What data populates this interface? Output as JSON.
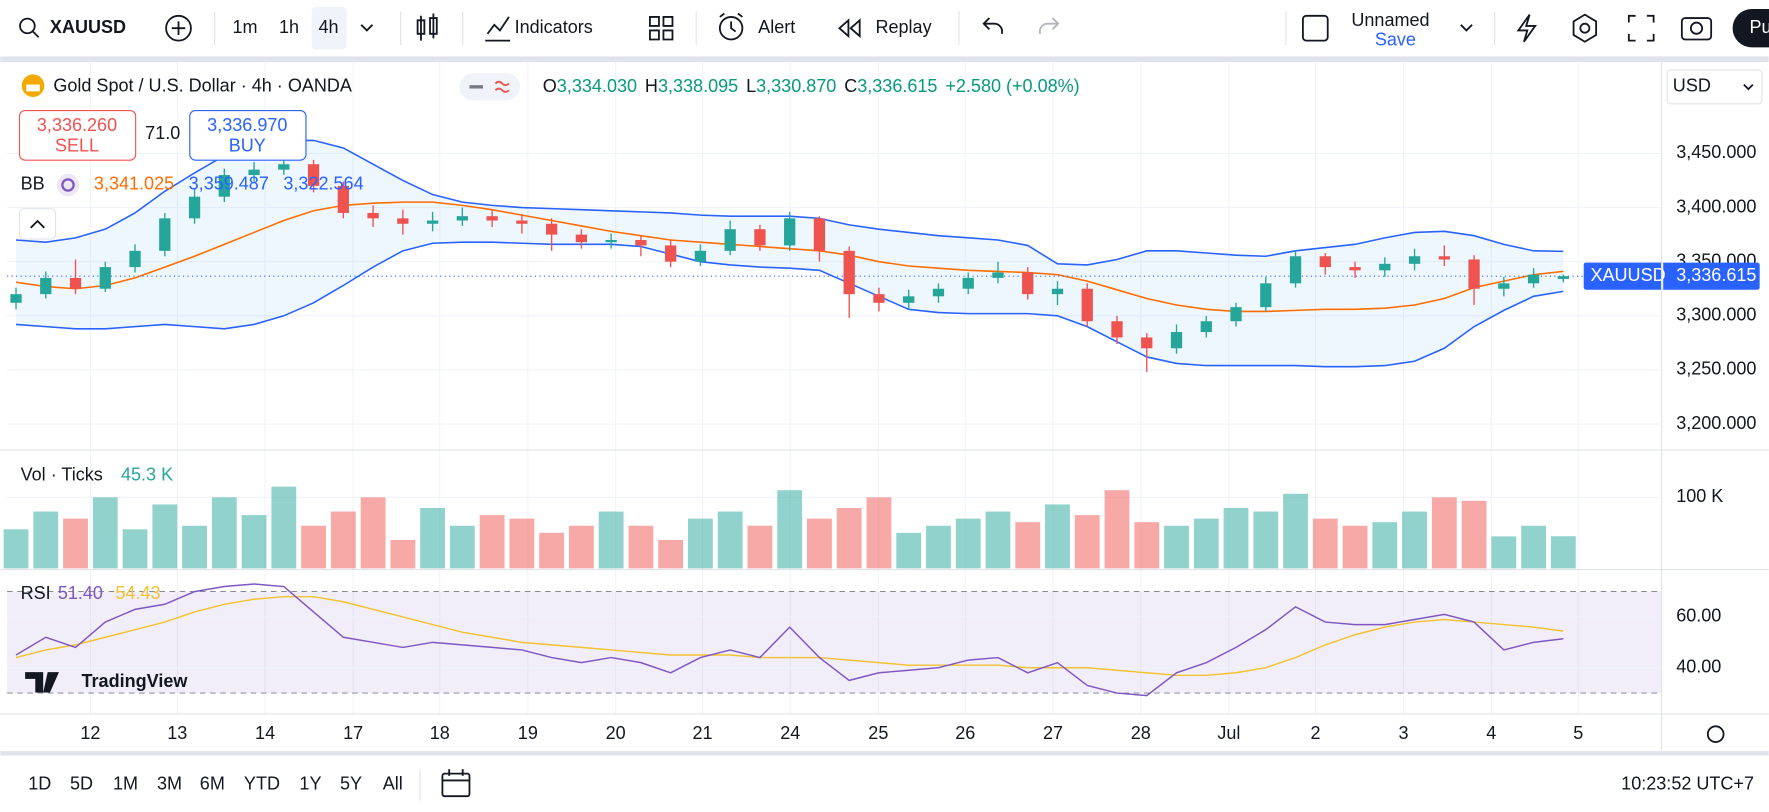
{
  "toolbar": {
    "symbol": "XAUUSD",
    "intervals": [
      "1m",
      "1h",
      "4h"
    ],
    "indicators": "Indicators",
    "alert": "Alert",
    "replay": "Replay",
    "layout": "Unnamed",
    "save": "Save",
    "publish": "Pu"
  },
  "legend": {
    "title": "Gold Spot / U.S. Dollar · 4h · OANDA",
    "ohlc": [
      {
        "key": "O",
        "value": "3,334.030"
      },
      {
        "key": "H",
        "value": "3,338.095"
      },
      {
        "key": "L",
        "value": "3,330.870"
      },
      {
        "key": "C",
        "value": "3,336.615"
      }
    ],
    "change": "+2.580 (+0.08%)"
  },
  "trade": {
    "sell_price": "3,336.260",
    "sell": "SELL",
    "spread": "71.0",
    "buy_price": "3,336.970",
    "buy": "BUY"
  },
  "bb": {
    "name": "BB",
    "values": [
      "3,341.025",
      "3,359.487",
      "3,322.564"
    ]
  },
  "vol_legend": {
    "name": "Vol · Ticks",
    "value": "45.3 K"
  },
  "rsi_legend": {
    "name": "RSI",
    "values": [
      "51.40",
      "54.43"
    ]
  },
  "watermark": "TradingView",
  "currency": "USD",
  "ranges": [
    "1D",
    "5D",
    "1M",
    "3M",
    "6M",
    "YTD",
    "1Y",
    "5Y",
    "All"
  ],
  "clock": "10:23:52 UTC+7",
  "chart_data": {
    "type": "candlestick",
    "xlim": [
      -0.3,
      55.3
    ],
    "xticks": [
      {
        "value": 2.5,
        "label": "12"
      },
      {
        "value": 5.42,
        "label": "13"
      },
      {
        "value": 8.37,
        "label": "14"
      },
      {
        "value": 11.33,
        "label": "17"
      },
      {
        "value": 14.24,
        "label": "18"
      },
      {
        "value": 17.2,
        "label": "19"
      },
      {
        "value": 20.15,
        "label": "20"
      },
      {
        "value": 23.07,
        "label": "21"
      },
      {
        "value": 26.02,
        "label": "24"
      },
      {
        "value": 28.98,
        "label": "25"
      },
      {
        "value": 31.9,
        "label": "26"
      },
      {
        "value": 34.85,
        "label": "27"
      },
      {
        "value": 37.8,
        "label": "28"
      },
      {
        "value": 40.76,
        "label": "Jul"
      },
      {
        "value": 43.67,
        "label": "2"
      },
      {
        "value": 46.63,
        "label": "3"
      },
      {
        "value": 49.58,
        "label": "4"
      },
      {
        "value": 52.5,
        "label": "5"
      }
    ],
    "ylim": [
      3177.1,
      3534.4
    ],
    "yticks": [
      {
        "value": 3200,
        "label": "3,200.000"
      },
      {
        "value": 3250,
        "label": "3,250.000"
      },
      {
        "value": 3300,
        "label": "3,300.000"
      },
      {
        "value": 3350,
        "label": "3,350.000"
      },
      {
        "value": 3400,
        "label": "3,400.000"
      },
      {
        "value": 3450,
        "label": "3,450.000"
      }
    ],
    "grid": true,
    "up_color": "#26a69a",
    "down_color": "#ef5350",
    "candles": {
      "open": [
        3312,
        3320,
        3335,
        3325,
        3345,
        3360,
        3390,
        3410,
        3430,
        3435,
        3440,
        3420,
        3395,
        3390,
        3385,
        3388,
        3392,
        3388,
        3385,
        3375,
        3368,
        3370,
        3365,
        3350,
        3360,
        3380,
        3365,
        3390,
        3360,
        3320,
        3312,
        3318,
        3325,
        3335,
        3340,
        3320,
        3325,
        3295,
        3280,
        3270,
        3285,
        3295,
        3308,
        3330,
        3355,
        3345,
        3342,
        3348,
        3355,
        3352,
        3325,
        3330,
        3334.03
      ],
      "high": [
        3326,
        3341,
        3352,
        3350,
        3366,
        3395,
        3418,
        3436,
        3442,
        3448,
        3444,
        3424,
        3402,
        3398,
        3396,
        3400,
        3398,
        3394,
        3390,
        3380,
        3376,
        3374,
        3370,
        3366,
        3388,
        3384,
        3396,
        3392,
        3364,
        3326,
        3324,
        3330,
        3340,
        3350,
        3345,
        3332,
        3330,
        3300,
        3284,
        3292,
        3300,
        3312,
        3336,
        3360,
        3358,
        3350,
        3354,
        3362,
        3365,
        3356,
        3336,
        3344,
        3338.095
      ],
      "low": [
        3306,
        3316,
        3320,
        3322,
        3340,
        3355,
        3385,
        3405,
        3424,
        3430,
        3414,
        3390,
        3382,
        3375,
        3378,
        3383,
        3382,
        3376,
        3360,
        3362,
        3362,
        3355,
        3345,
        3346,
        3356,
        3360,
        3360,
        3350,
        3298,
        3304,
        3306,
        3312,
        3320,
        3330,
        3315,
        3310,
        3290,
        3274,
        3248,
        3265,
        3280,
        3290,
        3304,
        3326,
        3338,
        3335,
        3336,
        3342,
        3346,
        3310,
        3318,
        3326,
        3330.87
      ],
      "close": [
        3320,
        3335,
        3325,
        3345,
        3360,
        3390,
        3410,
        3430,
        3435,
        3440,
        3420,
        3395,
        3390,
        3385,
        3388,
        3392,
        3388,
        3385,
        3375,
        3368,
        3370,
        3365,
        3350,
        3360,
        3380,
        3365,
        3390,
        3360,
        3320,
        3312,
        3318,
        3325,
        3335,
        3340,
        3320,
        3325,
        3295,
        3280,
        3270,
        3285,
        3295,
        3308,
        3330,
        3355,
        3345,
        3342,
        3348,
        3355,
        3352,
        3325,
        3330,
        3338,
        3336.615
      ]
    },
    "last_price": {
      "name": "XAUUSD",
      "value": 3336.615,
      "label": "3,336.615",
      "color": "#2962ff"
    },
    "bands": {
      "fill": "rgba(33,150,243,0.08)",
      "series": [
        {
          "color": "#ff6d00",
          "values": [
            3331,
            3327,
            3325,
            3328,
            3335,
            3345,
            3355,
            3366,
            3377,
            3388,
            3397,
            3402,
            3404,
            3405,
            3405,
            3402,
            3398,
            3393,
            3388,
            3383,
            3378,
            3374,
            3370,
            3368,
            3366,
            3364,
            3362,
            3360,
            3356,
            3350,
            3346,
            3344,
            3342,
            3341,
            3340,
            3338,
            3332,
            3324,
            3316,
            3310,
            3306,
            3304,
            3304,
            3305,
            3306,
            3306,
            3307,
            3310,
            3316,
            3326,
            3332,
            3338,
            3341.025
          ]
        },
        {
          "color": "#2962ff",
          "values": [
            3370,
            3368,
            3372,
            3380,
            3395,
            3415,
            3432,
            3448,
            3458,
            3462,
            3462,
            3455,
            3440,
            3425,
            3412,
            3405,
            3402,
            3400,
            3399,
            3398,
            3397,
            3396,
            3395,
            3393,
            3392,
            3392,
            3392,
            3390,
            3384,
            3380,
            3377,
            3374,
            3372,
            3370,
            3365,
            3348,
            3347,
            3352,
            3360,
            3360,
            3358,
            3356,
            3355,
            3360,
            3363,
            3366,
            3372,
            3377,
            3378,
            3374,
            3366,
            3360,
            3359.487
          ]
        },
        {
          "color": "#2962ff",
          "values": [
            3292,
            3290,
            3288,
            3288,
            3290,
            3292,
            3290,
            3288,
            3292,
            3300,
            3312,
            3328,
            3345,
            3360,
            3367,
            3368,
            3368,
            3367,
            3366,
            3366,
            3366,
            3364,
            3357,
            3350,
            3347,
            3345,
            3344,
            3342,
            3330,
            3318,
            3306,
            3303,
            3302,
            3302,
            3302,
            3300,
            3290,
            3276,
            3262,
            3256,
            3254,
            3254,
            3254,
            3254,
            3253,
            3253,
            3254,
            3258,
            3270,
            3290,
            3305,
            3318,
            3322.564
          ]
        }
      ]
    },
    "volume": {
      "ylim": [
        0,
        165000
      ],
      "yticks": [
        {
          "value": 100000,
          "label": "100 K"
        }
      ],
      "values": [
        55000,
        80000,
        70000,
        100000,
        55000,
        90000,
        60000,
        100000,
        75000,
        115000,
        60000,
        80000,
        100000,
        40000,
        85000,
        60000,
        75000,
        70000,
        50000,
        60000,
        80000,
        60000,
        40000,
        70000,
        80000,
        60000,
        110000,
        70000,
        85000,
        100000,
        50000,
        60000,
        70000,
        80000,
        65000,
        90000,
        75000,
        110000,
        65000,
        60000,
        70000,
        85000,
        80000,
        105000,
        70000,
        60000,
        65000,
        80000,
        100000,
        95000,
        45000,
        60000,
        45300
      ]
    },
    "rsi": {
      "ylim": [
        21.8,
        78.7
      ],
      "yticks": [
        {
          "value": 40,
          "label": "40.00"
        },
        {
          "value": 60,
          "label": "60.00"
        }
      ],
      "band": [
        30,
        70
      ],
      "color": "#7e57c2",
      "ma_color": "#f2c230",
      "values": [
        45,
        52,
        48,
        58,
        63,
        65,
        70,
        72,
        73,
        72,
        62,
        52,
        50,
        48,
        50,
        49,
        48,
        47,
        44,
        42,
        44,
        42,
        38,
        44,
        47,
        44,
        56,
        44,
        35,
        38,
        39,
        40,
        43,
        44,
        38,
        42,
        33,
        30,
        29,
        38,
        42,
        48,
        55,
        64,
        58,
        57,
        57,
        59,
        61,
        58,
        47,
        50,
        51.4
      ],
      "ma": [
        44,
        47,
        49,
        52,
        55,
        58,
        62,
        65,
        67,
        68,
        68,
        66,
        63,
        60,
        57,
        54,
        52,
        50,
        49,
        48,
        47,
        46,
        45,
        45,
        45,
        44,
        44,
        44,
        43,
        42,
        41,
        41,
        41,
        41,
        40,
        40,
        40,
        39,
        38,
        37,
        37,
        38,
        40,
        44,
        49,
        53,
        56,
        58,
        59,
        58,
        57,
        56,
        54.43
      ]
    }
  }
}
